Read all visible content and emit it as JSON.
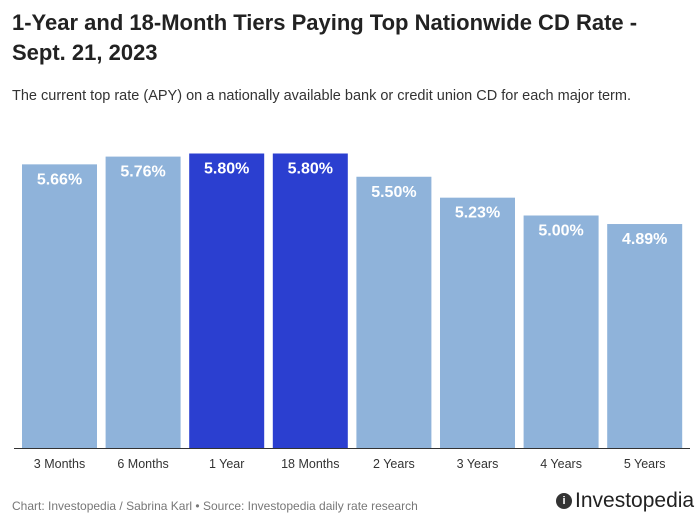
{
  "title": "1-Year and 18-Month Tiers Paying Top Nationwide CD Rate - Sept. 21, 2023",
  "subtitle": "The current top rate (APY) on a nationally available bank or credit union CD for each major term.",
  "footer": "Chart: Investopedia / Sabrina Karl • Source: Investopedia daily rate research",
  "logo": "Investopedia",
  "colors": {
    "bar": "#8fb3da",
    "highlight": "#2b3fd0",
    "label": "#ffffff"
  },
  "chart_data": {
    "type": "bar",
    "categories": [
      "3 Months",
      "6 Months",
      "1 Year",
      "18 Months",
      "2 Years",
      "3 Years",
      "4 Years",
      "5 Years"
    ],
    "values": [
      5.66,
      5.76,
      5.8,
      5.8,
      5.5,
      5.23,
      5.0,
      4.89
    ],
    "data_labels": [
      "5.66%",
      "5.76%",
      "5.80%",
      "5.80%",
      "5.50%",
      "5.23%",
      "5.00%",
      "4.89%"
    ],
    "highlighted": [
      "1 Year",
      "18 Months"
    ],
    "ylim": [
      2,
      6
    ],
    "grid": false,
    "xlabel": "",
    "ylabel": ""
  }
}
